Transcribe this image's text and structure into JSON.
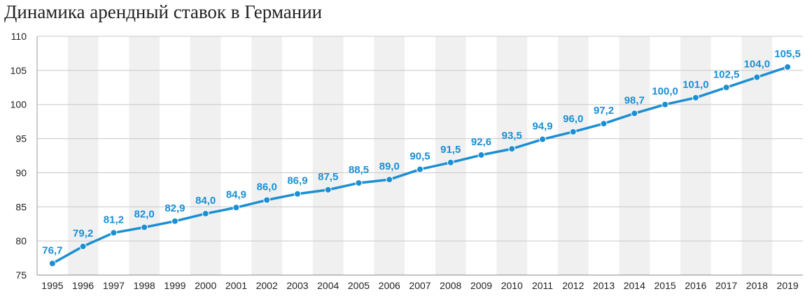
{
  "chart_data": {
    "type": "line",
    "title": "Динамика арендный ставок в Германии",
    "xlabel": "",
    "ylabel": "",
    "categories": [
      "1995",
      "1996",
      "1997",
      "1998",
      "1999",
      "2000",
      "2001",
      "2002",
      "2003",
      "2004",
      "2005",
      "2006",
      "2007",
      "2008",
      "2009",
      "2010",
      "2011",
      "2012",
      "2013",
      "2014",
      "2015",
      "2016",
      "2017",
      "2018",
      "2019"
    ],
    "values": [
      76.7,
      79.2,
      81.2,
      82.0,
      82.9,
      84.0,
      84.9,
      86.0,
      86.9,
      87.5,
      88.5,
      89.0,
      90.5,
      91.5,
      92.6,
      93.5,
      94.9,
      96.0,
      97.2,
      98.7,
      100.0,
      101.0,
      102.5,
      104.0,
      105.5
    ],
    "data_labels": [
      "76,7",
      "79,2",
      "81,2",
      "82,0",
      "82,9",
      "84,0",
      "84,9",
      "86,0",
      "86,9",
      "87,5",
      "88,5",
      "89,0",
      "90,5",
      "91,5",
      "92,6",
      "93,5",
      "94,9",
      "96,0",
      "97,2",
      "98,7",
      "100,0",
      "101,0",
      "102,5",
      "104,0",
      "105,5"
    ],
    "y_ticks": [
      "75",
      "80",
      "85",
      "90",
      "95",
      "100",
      "105",
      "110"
    ],
    "ylim": [
      75,
      110
    ],
    "grid": true,
    "line_color": "#1b8fd3",
    "label_color": "#1b8fd3",
    "band_color": "#f0f0f0"
  }
}
